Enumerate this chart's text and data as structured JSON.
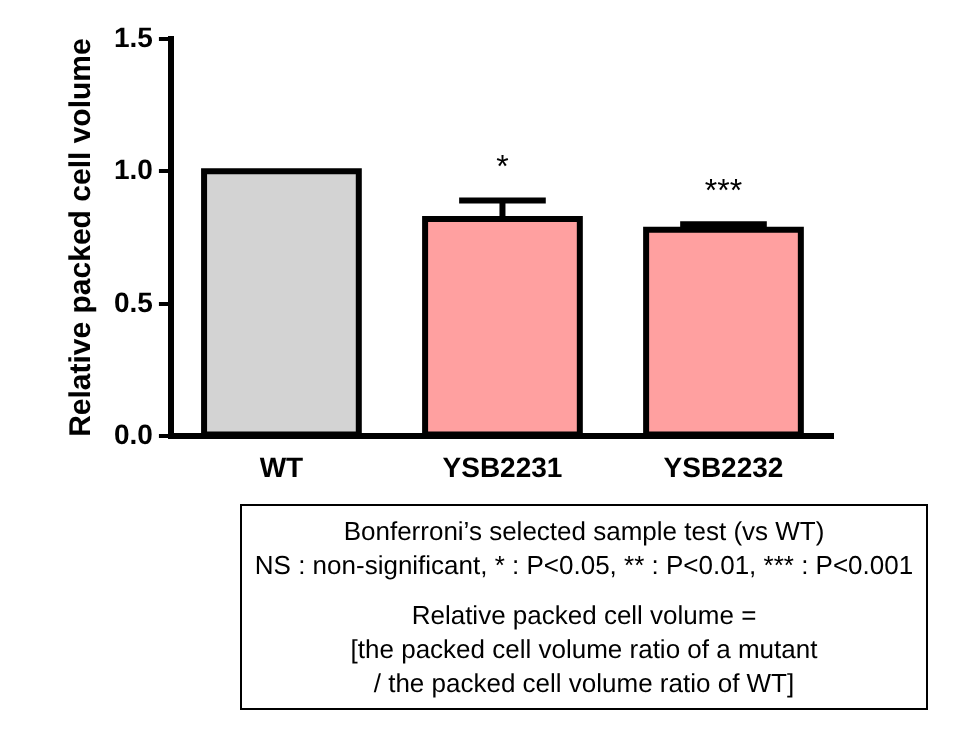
{
  "chart_data": {
    "type": "bar",
    "ylabel": "Relative packed cell volume",
    "categories": [
      "WT",
      "YSB2231",
      "YSB2232"
    ],
    "values": [
      1.0,
      0.82,
      0.78
    ],
    "colors": [
      "#d3d3d3",
      "#ffa0a0",
      "#ffa0a0"
    ],
    "errors": [
      null,
      [
        0.82,
        0.89
      ],
      [
        0.78,
        0.8
      ]
    ],
    "ylim": [
      0,
      1.5
    ],
    "yticks": [
      {
        "value": 0,
        "label": "0.0"
      },
      {
        "value": 0.5,
        "label": "0.5"
      },
      {
        "value": 1,
        "label": "1.0"
      },
      {
        "value": 1.5,
        "label": "1.5"
      }
    ],
    "grid": false,
    "legend": false,
    "annotations": [
      "*",
      "***",
      "Bonferroni’s selected sample test (vs WT)",
      "NS : non-significant, * : P<0.05, ** : P<0.01, *** : P<0.001",
      "Relative packed cell volume =",
      "[the packed cell volume ratio of a mutant",
      "/ the packed cell volume ratio of WT]"
    ]
  }
}
